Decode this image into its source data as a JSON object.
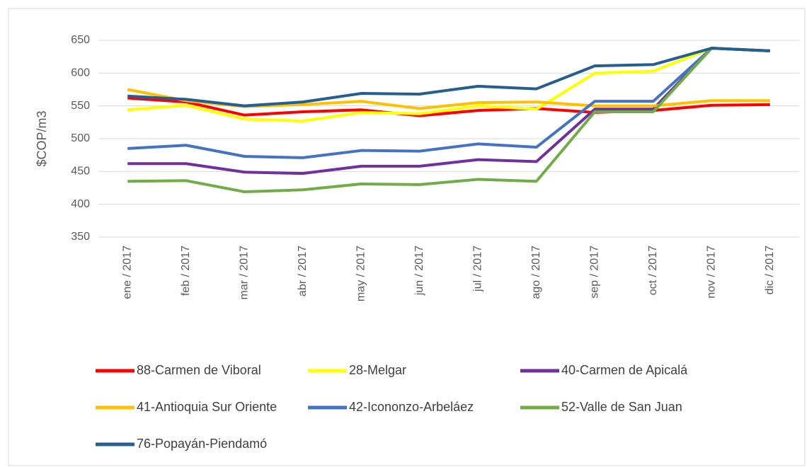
{
  "chart_data": {
    "type": "line",
    "y_label": "$COP/m3",
    "categories": [
      "ene / 2017",
      "feb / 2017",
      "mar / 2017",
      "abr / 2017",
      "may / 2017",
      "jun / 2017",
      "jul / 2017",
      "ago / 2017",
      "sep / 2017",
      "oct / 2017",
      "nov / 2017",
      "dic / 2017"
    ],
    "series": [
      {
        "name": "88-Carmen de Viboral",
        "color": "#ff0000",
        "values": [
          562,
          556,
          536,
          541,
          544,
          535,
          543,
          546,
          540,
          543,
          551,
          552
        ]
      },
      {
        "name": "28-Melgar",
        "color": "#ffff00",
        "values": [
          544,
          551,
          530,
          527,
          540,
          538,
          550,
          545,
          600,
          603,
          638,
          634
        ]
      },
      {
        "name": "40-Carmen de Apicalá",
        "color": "#7030a0",
        "values": [
          462,
          462,
          449,
          447,
          458,
          458,
          468,
          465,
          545,
          545,
          638,
          634
        ]
      },
      {
        "name": "41-Antioquia Sur Oriente",
        "color": "#ffc000",
        "values": [
          575,
          558,
          549,
          552,
          557,
          546,
          555,
          556,
          550,
          550,
          558,
          558
        ]
      },
      {
        "name": "42-Icononzo-Arbeláez",
        "color": "#4472c4",
        "values": [
          485,
          490,
          473,
          471,
          482,
          481,
          492,
          487,
          557,
          557,
          638,
          634
        ]
      },
      {
        "name": "52-Valle de San Juan",
        "color": "#70ad47",
        "values": [
          435,
          436,
          419,
          422,
          431,
          430,
          438,
          435,
          541,
          541,
          638,
          634
        ]
      },
      {
        "name": "76-Popayán-Piendamó",
        "color": "#255e91",
        "values": [
          565,
          560,
          550,
          556,
          569,
          568,
          580,
          576,
          611,
          613,
          638,
          634
        ]
      }
    ],
    "ylim": [
      350,
      650
    ],
    "yticks": [
      350,
      400,
      450,
      500,
      550,
      600,
      650
    ],
    "grid": true
  }
}
